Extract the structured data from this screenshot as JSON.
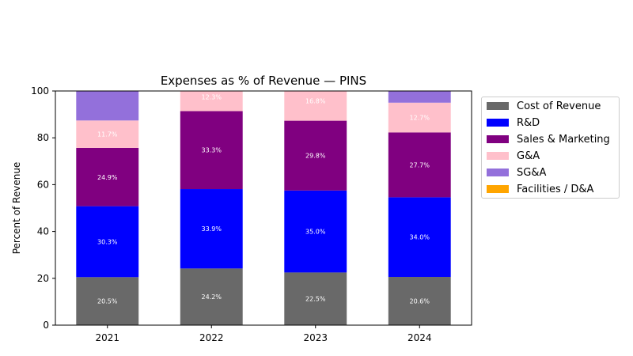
{
  "chart_data": {
    "type": "bar",
    "stacked": true,
    "title": "Expenses as % of Revenue — PINS",
    "xlabel": "",
    "ylabel": "Percent of Revenue",
    "categories": [
      "2021",
      "2022",
      "2023",
      "2024"
    ],
    "ylim": [
      0,
      100
    ],
    "yticks": [
      "0",
      "20",
      "40",
      "60",
      "80",
      "100"
    ],
    "grid": false,
    "legend_position": "outside-right",
    "series": [
      {
        "name": "Cost of Revenue",
        "color": "#696969",
        "values": [
          20.5,
          24.2,
          22.5,
          20.6
        ],
        "labels": [
          "20.5%",
          "24.2%",
          "22.5%",
          "20.6%"
        ]
      },
      {
        "name": "R&D",
        "color": "#0000ff",
        "values": [
          30.3,
          33.9,
          35.0,
          34.0
        ],
        "labels": [
          "30.3%",
          "33.9%",
          "35.0%",
          "34.0%"
        ]
      },
      {
        "name": "Sales & Marketing",
        "color": "#800080",
        "values": [
          24.9,
          33.3,
          29.8,
          27.7
        ],
        "labels": [
          "24.9%",
          "33.3%",
          "29.8%",
          "27.7%"
        ]
      },
      {
        "name": "G&A",
        "color": "#ffc0cb",
        "values": [
          11.7,
          12.3,
          16.8,
          12.7
        ],
        "labels": [
          "11.7%",
          "12.3%",
          "16.8%",
          "12.7%"
        ]
      },
      {
        "name": "SG&A",
        "color": "#9370db",
        "values": [
          12.6,
          0,
          0,
          5.0
        ],
        "labels": [
          "",
          "",
          "",
          ""
        ]
      },
      {
        "name": "Facilities / D&A",
        "color": "#ffa500",
        "values": [
          0,
          0,
          0,
          0
        ],
        "labels": [
          "",
          "",
          "",
          ""
        ]
      }
    ]
  }
}
